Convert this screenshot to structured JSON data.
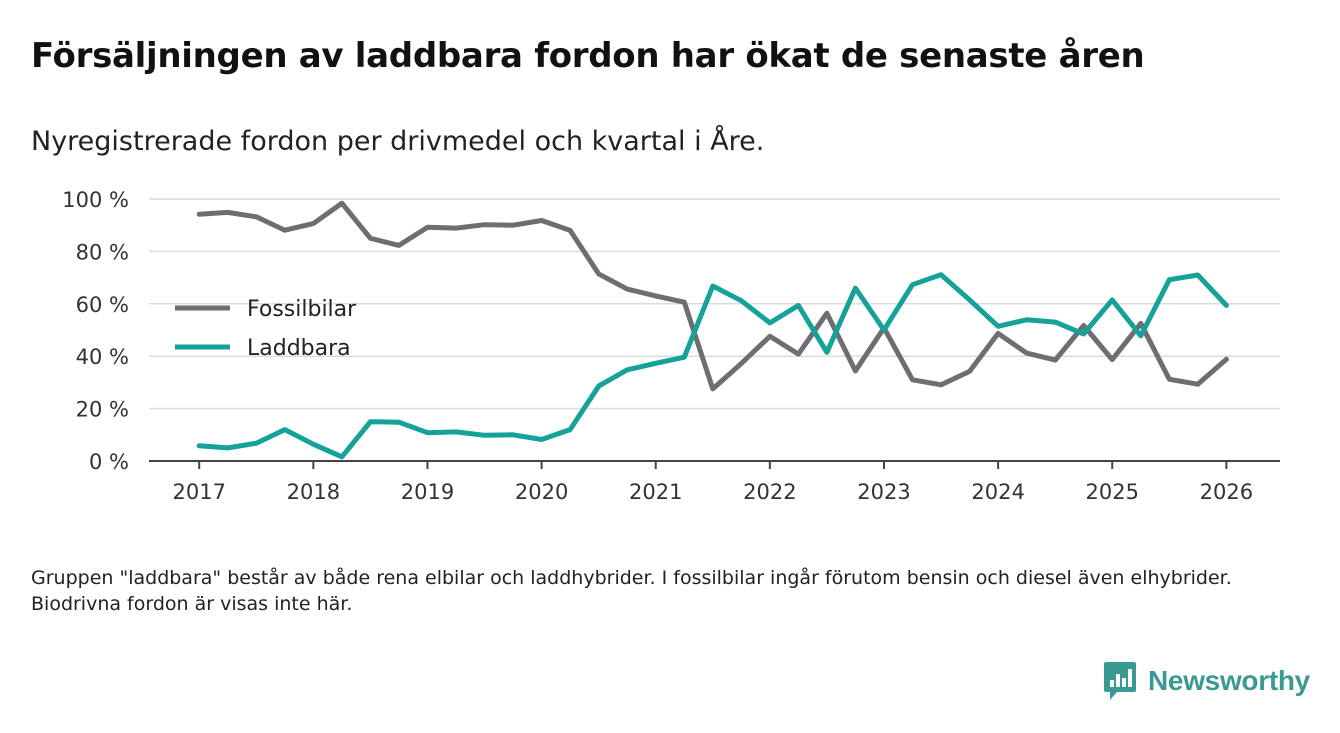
{
  "title": "Försäljningen av laddbara fordon har ökat de senaste åren",
  "subtitle": "Nyregistrerade fordon per drivmedel och kvartal i Åre.",
  "footnote": "Gruppen \"laddbara\" består av både rena elbilar och laddhybrider. I fossilbilar ingår förutom bensin och diesel även elhybrider. Biodrivna fordon är visas inte här.",
  "brand": {
    "name": "Newsworthy",
    "icon": "newsworthy-logo-icon"
  },
  "colors": {
    "fossil": "#6e6e72",
    "laddbara": "#14a299",
    "grid": "#dcdcdc",
    "axis": "#444444",
    "brand": "#3a9a93"
  },
  "chart_data": {
    "type": "line",
    "title": "Försäljningen av laddbara fordon har ökat de senaste åren",
    "subtitle": "Nyregistrerade fordon per drivmedel och kvartal i Åre.",
    "xlabel": "",
    "ylabel": "",
    "ylim": [
      0,
      100
    ],
    "xlim": [
      2016.56,
      2026.47
    ],
    "y_ticks": [
      0,
      20,
      40,
      60,
      80,
      100
    ],
    "y_tick_labels": [
      "0 %",
      "20 %",
      "40 %",
      "60 %",
      "80 %",
      "100 %"
    ],
    "x_ticks": [
      2017,
      2018,
      2019,
      2020,
      2021,
      2022,
      2023,
      2024,
      2025,
      2026
    ],
    "x_tick_labels": [
      "2017",
      "2018",
      "2019",
      "2020",
      "2021",
      "2022",
      "2023",
      "2024",
      "2025",
      "2026"
    ],
    "grid": true,
    "legend_position": "left-middle",
    "x": [
      2017,
      2017.25,
      2017.5,
      2017.75,
      2018,
      2018.25,
      2018.5,
      2018.75,
      2019,
      2019.25,
      2019.5,
      2019.75,
      2020,
      2020.25,
      2020.5,
      2020.75,
      2021,
      2021.25,
      2021.5,
      2021.75,
      2022,
      2022.25,
      2022.5,
      2022.75,
      2023,
      2023.25,
      2023.5,
      2023.75,
      2024,
      2024.25,
      2024.5,
      2024.75,
      2025,
      2025.25,
      2025.5,
      2025.75,
      2026
    ],
    "series": [
      {
        "name": "Fossilbilar",
        "key": "fossil",
        "values": [
          94.2,
          94.9,
          93.2,
          88.1,
          90.6,
          98.4,
          85.0,
          82.3,
          89.2,
          88.9,
          90.2,
          90.0,
          91.8,
          88.0,
          71.4,
          65.6,
          63.0,
          60.6,
          27.5,
          37.2,
          47.6,
          40.8,
          56.4,
          34.4,
          50.8,
          31.0,
          29.1,
          34.2,
          48.7,
          41.2,
          38.5,
          51.7,
          38.7,
          52.5,
          31.2,
          29.3,
          38.8
        ]
      },
      {
        "name": "Laddbara",
        "key": "laddbara",
        "values": [
          5.8,
          5.0,
          6.8,
          12.0,
          6.4,
          1.6,
          15.0,
          14.8,
          10.8,
          11.1,
          9.8,
          10.0,
          8.2,
          12.0,
          28.6,
          34.8,
          37.3,
          39.6,
          66.8,
          61.2,
          52.7,
          59.4,
          41.5,
          66.0,
          50.0,
          67.3,
          71.1,
          61.5,
          51.4,
          53.9,
          53.0,
          48.5,
          61.5,
          47.8,
          69.2,
          71.0,
          59.4
        ]
      }
    ]
  }
}
